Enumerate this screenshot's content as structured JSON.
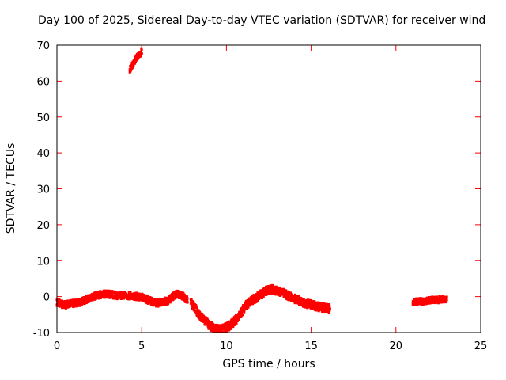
{
  "page": {
    "background": "#ffffff"
  },
  "chart_data": {
    "type": "scatter",
    "title": "Day 100 of 2025, Sidereal Day-to-day VTEC variation (SDTVAR) for receiver wind",
    "xlabel": "GPS time / hours",
    "ylabel": "SDTVAR / TECUs",
    "xlim": [
      0,
      25
    ],
    "ylim": [
      -10,
      70
    ],
    "xticks": [
      0,
      5,
      10,
      15,
      20,
      25
    ],
    "yticks": [
      -10,
      0,
      10,
      20,
      30,
      40,
      50,
      60,
      70
    ],
    "grid": false,
    "legend": "none",
    "marker": {
      "color": "#ff0000",
      "size": 3
    },
    "tick_color": "#ff0000",
    "border_color": "#000000",
    "text_color": "#000000",
    "series": [
      {
        "name": "main-band-0-8h",
        "spread": 1.0,
        "points": [
          [
            0,
            -1.5
          ],
          [
            0.2,
            -2.0
          ],
          [
            0.5,
            -2.3
          ],
          [
            0.8,
            -2.0
          ],
          [
            1.1,
            -1.8
          ],
          [
            1.4,
            -1.5
          ],
          [
            1.7,
            -1.0
          ],
          [
            2.0,
            -0.3
          ],
          [
            2.4,
            0.4
          ],
          [
            2.8,
            0.7
          ],
          [
            3.2,
            0.6
          ],
          [
            3.6,
            0.2
          ],
          [
            4.0,
            0.4
          ],
          [
            4.4,
            0.2
          ],
          [
            4.8,
            0.0
          ],
          [
            5.1,
            -0.3
          ],
          [
            5.5,
            -1.2
          ],
          [
            5.9,
            -1.8
          ],
          [
            6.2,
            -1.6
          ],
          [
            6.6,
            -1.0
          ],
          [
            6.9,
            0.3
          ],
          [
            7.1,
            0.8
          ],
          [
            7.4,
            0.2
          ],
          [
            7.7,
            -1.0
          ]
        ]
      },
      {
        "name": "high-arc-4-5h",
        "spread": 0.8,
        "points": [
          [
            4.3,
            63.2
          ],
          [
            4.45,
            64.5
          ],
          [
            4.6,
            65.8
          ],
          [
            4.75,
            66.8
          ],
          [
            4.9,
            67.6
          ],
          [
            5.0,
            68.3
          ]
        ]
      },
      {
        "name": "main-band-8-16h",
        "spread": 1.2,
        "points": [
          [
            7.9,
            -1.8
          ],
          [
            8.1,
            -3.0
          ],
          [
            8.4,
            -5.0
          ],
          [
            8.7,
            -6.5
          ],
          [
            9.0,
            -8.0
          ],
          [
            9.3,
            -8.8
          ],
          [
            9.6,
            -9.2
          ],
          [
            9.9,
            -8.8
          ],
          [
            10.2,
            -8.0
          ],
          [
            10.5,
            -6.8
          ],
          [
            10.8,
            -5.0
          ],
          [
            11.0,
            -3.5
          ],
          [
            11.2,
            -2.2
          ],
          [
            11.5,
            -1.0
          ],
          [
            11.8,
            -0.2
          ],
          [
            12.1,
            0.8
          ],
          [
            12.4,
            1.8
          ],
          [
            12.7,
            2.0
          ],
          [
            13.0,
            1.6
          ],
          [
            13.3,
            1.2
          ],
          [
            13.6,
            0.4
          ],
          [
            14.0,
            -0.5
          ],
          [
            14.4,
            -1.4
          ],
          [
            14.8,
            -2.0
          ],
          [
            15.2,
            -2.5
          ],
          [
            15.6,
            -3.0
          ],
          [
            15.9,
            -3.0
          ],
          [
            16.1,
            -3.4
          ]
        ]
      },
      {
        "name": "band-21-23h",
        "spread": 0.9,
        "points": [
          [
            21.0,
            -1.6
          ],
          [
            21.3,
            -1.3
          ],
          [
            21.6,
            -1.4
          ],
          [
            21.9,
            -1.1
          ],
          [
            22.2,
            -0.9
          ],
          [
            22.5,
            -0.9
          ],
          [
            22.8,
            -0.7
          ],
          [
            23.0,
            -0.8
          ]
        ]
      }
    ]
  }
}
